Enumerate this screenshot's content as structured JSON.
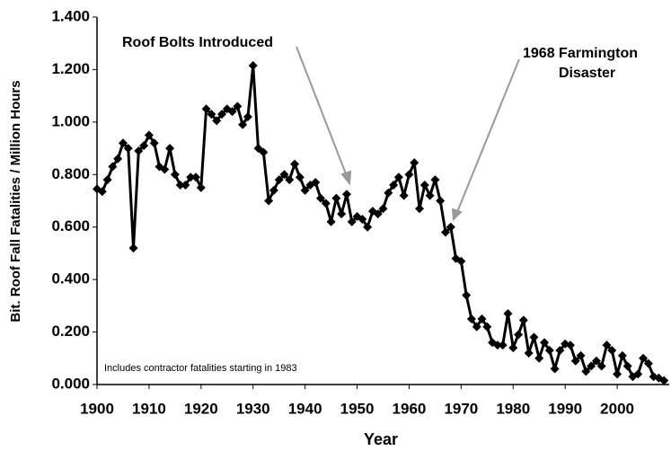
{
  "chart_data": {
    "type": "line",
    "x_label": "Year",
    "y_label": "Bit. Roof Fall Fatalities / Million Hours",
    "annotations": [
      "Roof Bolts Introduced",
      "1968 Farmington",
      "Disaster"
    ],
    "note": "Includes contractor fatalities  starting in 1983",
    "x": [
      1900,
      1901,
      1902,
      1903,
      1904,
      1905,
      1906,
      1907,
      1908,
      1909,
      1910,
      1911,
      1912,
      1913,
      1914,
      1915,
      1916,
      1917,
      1918,
      1919,
      1920,
      1921,
      1922,
      1923,
      1924,
      1925,
      1926,
      1927,
      1928,
      1929,
      1930,
      1931,
      1932,
      1933,
      1934,
      1935,
      1936,
      1937,
      1938,
      1939,
      1940,
      1941,
      1942,
      1943,
      1944,
      1945,
      1946,
      1947,
      1948,
      1949,
      1950,
      1951,
      1952,
      1953,
      1954,
      1955,
      1956,
      1957,
      1958,
      1959,
      1960,
      1961,
      1962,
      1963,
      1964,
      1965,
      1966,
      1967,
      1968,
      1969,
      1970,
      1971,
      1972,
      1973,
      1974,
      1975,
      1976,
      1977,
      1978,
      1979,
      1980,
      1981,
      1982,
      1983,
      1984,
      1985,
      1986,
      1987,
      1988,
      1989,
      1990,
      1991,
      1992,
      1993,
      1994,
      1995,
      1996,
      1997,
      1998,
      1999,
      2000,
      2001,
      2002,
      2003,
      2004,
      2005,
      2006,
      2007,
      2008,
      2009
    ],
    "series": [
      {
        "color": "#000000",
        "values": [
          0.745,
          0.735,
          0.78,
          0.83,
          0.86,
          0.92,
          0.9,
          0.52,
          0.89,
          0.91,
          0.95,
          0.92,
          0.83,
          0.82,
          0.9,
          0.8,
          0.76,
          0.76,
          0.79,
          0.79,
          0.75,
          1.05,
          1.03,
          1.005,
          1.03,
          1.05,
          1.04,
          1.06,
          0.99,
          1.02,
          1.215,
          0.9,
          0.885,
          0.7,
          0.74,
          0.78,
          0.8,
          0.78,
          0.84,
          0.79,
          0.74,
          0.76,
          0.77,
          0.71,
          0.69,
          0.62,
          0.71,
          0.65,
          0.725,
          0.62,
          0.64,
          0.63,
          0.6,
          0.66,
          0.65,
          0.67,
          0.73,
          0.76,
          0.79,
          0.72,
          0.8,
          0.845,
          0.67,
          0.76,
          0.72,
          0.78,
          0.7,
          0.58,
          0.6,
          0.48,
          0.47,
          0.34,
          0.25,
          0.22,
          0.25,
          0.22,
          0.16,
          0.15,
          0.15,
          0.27,
          0.14,
          0.19,
          0.245,
          0.12,
          0.18,
          0.1,
          0.16,
          0.13,
          0.06,
          0.13,
          0.155,
          0.15,
          0.09,
          0.11,
          0.05,
          0.07,
          0.09,
          0.07,
          0.15,
          0.13,
          0.04,
          0.11,
          0.07,
          0.03,
          0.04,
          0.1,
          0.08,
          0.03,
          0.025,
          0.015
        ]
      }
    ],
    "xlim": [
      1900,
      2010
    ],
    "xticks": [
      1900,
      1910,
      1920,
      1930,
      1940,
      1950,
      1960,
      1970,
      1980,
      1990,
      2000
    ],
    "ylim": [
      0,
      1.4
    ],
    "yticks": [
      {
        "value": 0,
        "label": "0.000"
      },
      {
        "value": 0.2,
        "label": "0.200"
      },
      {
        "value": 0.4,
        "label": "0.400"
      },
      {
        "value": 0.6,
        "label": "0.600"
      },
      {
        "value": 0.8,
        "label": "0.800"
      },
      {
        "value": 1.0,
        "label": "1.000"
      },
      {
        "value": 1.2,
        "label": "1.200"
      },
      {
        "value": 1.4,
        "label": "1.400"
      }
    ],
    "grid": false
  }
}
